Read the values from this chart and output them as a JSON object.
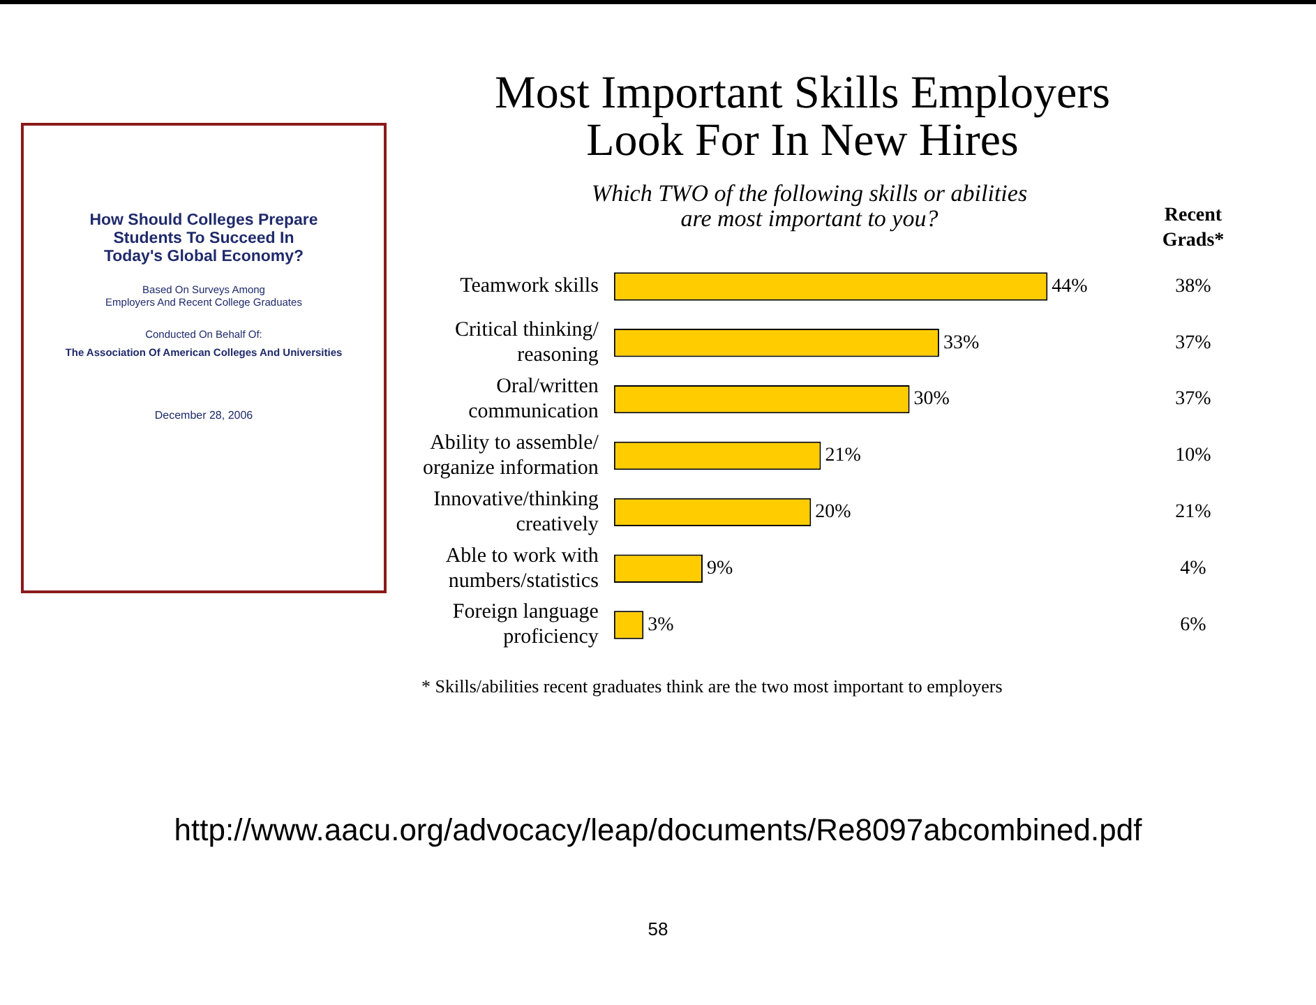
{
  "chart_data": {
    "type": "bar",
    "orientation": "horizontal",
    "title": "Most Important Skills Employers\nLook For In New Hires",
    "subtitle": "Which TWO of the following skills or abilities\nare most important to you?",
    "categories": [
      "Teamwork skills",
      "Critical thinking/\nreasoning",
      "Oral/written\ncommunication",
      "Ability to assemble/\norganize information",
      "Innovative/thinking\ncreatively",
      "Able to work with\nnumbers/statistics",
      "Foreign language\nproficiency"
    ],
    "values": [
      44,
      33,
      30,
      21,
      20,
      9,
      3
    ],
    "value_labels": [
      "44%",
      "33%",
      "30%",
      "21%",
      "20%",
      "9%",
      "3%"
    ],
    "color": "#ffcc00",
    "legend": false,
    "tick_labels": "y",
    "grid": false,
    "annotations": [
      "Recent\nGrads*",
      "* Skills/abilities recent graduates think are the two most important to employers",
      "http://www.aacu.org/advocacy/leap/documents/Re8097abcombined.pdf",
      "58",
      "How Should Colleges Prepare\nStudents To Succeed In\nToday's Global Economy?",
      "Based On Surveys Among\nEmployers And Recent College Graduates",
      "Conducted On Behalf Of:",
      "The Association Of American Colleges And Universities",
      "December 28, 2006",
      "38%",
      "37%",
      "37%",
      "10%",
      "21%",
      "4%",
      "6%"
    ]
  }
}
